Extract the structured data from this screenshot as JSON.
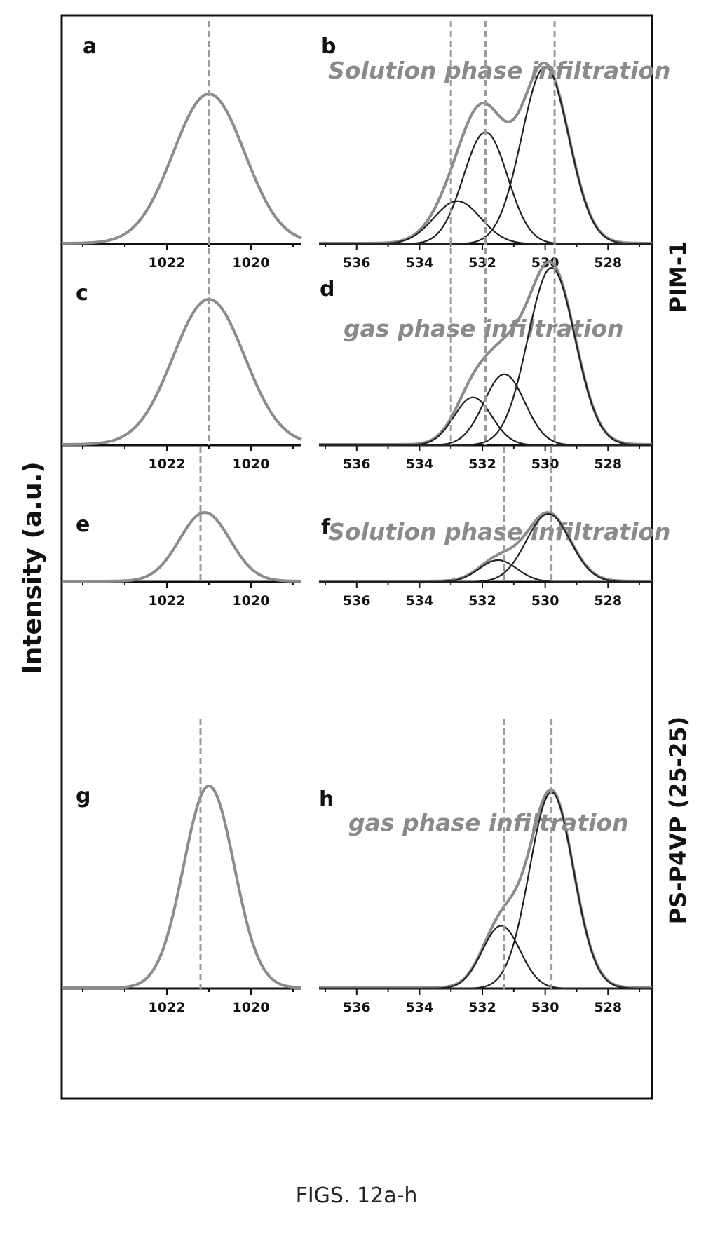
{
  "figure": {
    "caption": "FIGS. 12a-h",
    "ylabel": "Intensity (a.u.)",
    "side_labels": [
      "PIM-1",
      "PS-P4VP (25-25)"
    ],
    "colors": {
      "envelope": "#8c8c8c",
      "component": "#222222",
      "dashed": "#9a9a9a"
    }
  },
  "chart_data": [
    {
      "panel": "a",
      "type": "line",
      "xlim": [
        1024.5,
        1018.8
      ],
      "ylim": [
        0,
        1.1
      ],
      "xticks": [
        1022,
        1020
      ],
      "annotation": "",
      "series": [
        {
          "role": "envelope",
          "peaks": [
            {
              "center": 1021.0,
              "amp": 1.0,
              "sigma": 0.85
            }
          ]
        }
      ],
      "reference_lines": [
        1021.0
      ]
    },
    {
      "panel": "b",
      "type": "line",
      "xlim": [
        537.2,
        526.6
      ],
      "ylim": [
        0,
        1.1
      ],
      "xticks": [
        536,
        534,
        532,
        530,
        528
      ],
      "annotation": "Solution phase infiltration",
      "series": [
        {
          "role": "envelope",
          "peaks": [
            {
              "center": 530.0,
              "amp": 0.95,
              "sigma": 0.75
            },
            {
              "center": 531.9,
              "amp": 0.6,
              "sigma": 0.7
            },
            {
              "center": 532.8,
              "amp": 0.23,
              "sigma": 0.75
            }
          ]
        },
        {
          "role": "component",
          "peaks": [
            {
              "center": 532.8,
              "amp": 0.23,
              "sigma": 0.75
            }
          ]
        },
        {
          "role": "component",
          "peaks": [
            {
              "center": 531.9,
              "amp": 0.6,
              "sigma": 0.7
            }
          ]
        },
        {
          "role": "component",
          "peaks": [
            {
              "center": 530.0,
              "amp": 0.95,
              "sigma": 0.75
            }
          ]
        }
      ],
      "reference_lines": [
        533.0,
        531.9,
        529.7
      ]
    },
    {
      "panel": "c",
      "type": "line",
      "xlim": [
        1024.5,
        1018.8
      ],
      "ylim": [
        0,
        1.1
      ],
      "xticks": [
        1022,
        1020
      ],
      "annotation": "gas phase infiltration",
      "series": [
        {
          "role": "envelope",
          "peaks": [
            {
              "center": 1021.0,
              "amp": 1.0,
              "sigma": 0.85
            }
          ]
        }
      ],
      "reference_lines": [
        1021.0
      ]
    },
    {
      "panel": "d",
      "type": "line",
      "xlim": [
        537.2,
        526.6
      ],
      "ylim": [
        0,
        1.1
      ],
      "xticks": [
        536,
        534,
        532,
        530,
        528
      ],
      "annotation": "",
      "series": [
        {
          "role": "envelope",
          "peaks": [
            {
              "center": 529.8,
              "amp": 1.0,
              "sigma": 0.75
            },
            {
              "center": 531.3,
              "amp": 0.4,
              "sigma": 0.65
            },
            {
              "center": 532.3,
              "amp": 0.27,
              "sigma": 0.6
            }
          ]
        },
        {
          "role": "component",
          "peaks": [
            {
              "center": 532.3,
              "amp": 0.27,
              "sigma": 0.6
            }
          ]
        },
        {
          "role": "component",
          "peaks": [
            {
              "center": 531.3,
              "amp": 0.4,
              "sigma": 0.65
            }
          ]
        },
        {
          "role": "component",
          "peaks": [
            {
              "center": 529.8,
              "amp": 1.0,
              "sigma": 0.75
            }
          ]
        }
      ],
      "reference_lines": [
        533.0,
        531.9,
        529.7
      ]
    },
    {
      "panel": "e",
      "type": "line",
      "xlim": [
        1024.5,
        1018.8
      ],
      "ylim": [
        0,
        1.1
      ],
      "xticks": [
        1022,
        1020
      ],
      "annotation": "Solution phase infiltration",
      "series": [
        {
          "role": "envelope",
          "peaks": [
            {
              "center": 1021.1,
              "amp": 1.0,
              "sigma": 0.6
            }
          ]
        }
      ],
      "reference_lines": [
        1021.2
      ]
    },
    {
      "panel": "f",
      "type": "line",
      "xlim": [
        537.2,
        526.6
      ],
      "ylim": [
        0,
        1.1
      ],
      "xticks": [
        536,
        534,
        532,
        530,
        528
      ],
      "annotation": "",
      "series": [
        {
          "role": "envelope",
          "peaks": [
            {
              "center": 529.9,
              "amp": 1.0,
              "sigma": 0.7
            },
            {
              "center": 531.5,
              "amp": 0.32,
              "sigma": 0.6
            }
          ]
        },
        {
          "role": "component",
          "peaks": [
            {
              "center": 531.5,
              "amp": 0.32,
              "sigma": 0.6
            }
          ]
        },
        {
          "role": "component",
          "peaks": [
            {
              "center": 529.9,
              "amp": 1.0,
              "sigma": 0.7
            }
          ]
        }
      ],
      "reference_lines": [
        531.3,
        529.8
      ]
    },
    {
      "panel": "g",
      "type": "line",
      "xlim": [
        1024.5,
        1018.8
      ],
      "ylim": [
        0,
        1.1
      ],
      "xticks": [
        1022,
        1020
      ],
      "annotation": "",
      "series": [
        {
          "role": "envelope",
          "peaks": [
            {
              "center": 1021.0,
              "amp": 1.0,
              "sigma": 0.6
            }
          ]
        }
      ],
      "reference_lines": [
        1021.2
      ]
    },
    {
      "panel": "h",
      "type": "line",
      "xlim": [
        537.2,
        526.6
      ],
      "ylim": [
        0,
        1.1
      ],
      "xticks": [
        536,
        534,
        532,
        530,
        528
      ],
      "annotation": "gas phase infiltration",
      "series": [
        {
          "role": "envelope",
          "peaks": [
            {
              "center": 529.8,
              "amp": 1.0,
              "sigma": 0.7
            },
            {
              "center": 531.4,
              "amp": 0.32,
              "sigma": 0.6
            }
          ]
        },
        {
          "role": "component",
          "peaks": [
            {
              "center": 531.4,
              "amp": 0.32,
              "sigma": 0.6
            }
          ]
        },
        {
          "role": "component",
          "peaks": [
            {
              "center": 529.8,
              "amp": 1.0,
              "sigma": 0.7
            }
          ]
        }
      ],
      "reference_lines": [
        531.3,
        529.8
      ]
    }
  ]
}
